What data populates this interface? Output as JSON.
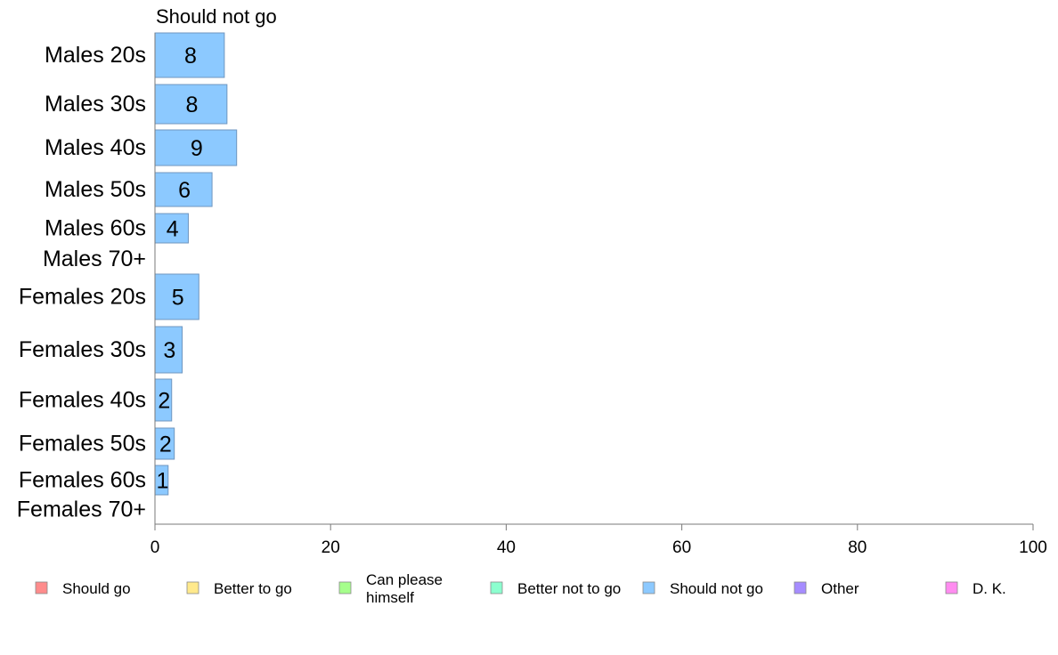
{
  "chart_data": {
    "type": "bar",
    "orientation": "horizontal",
    "title": "Should not go",
    "categories": [
      "Males 20s",
      "Males 30s",
      "Males 40s",
      "Males 50s",
      "Males 60s",
      "Males 70+",
      "Females 20s",
      "Females 30s",
      "Females 40s",
      "Females 50s",
      "Females 60s",
      "Females 70+"
    ],
    "series": [
      {
        "name": "Should not go",
        "values": [
          7.9,
          8.2,
          9.3,
          6.5,
          3.8,
          0,
          5.0,
          3.1,
          1.9,
          2.2,
          1.5,
          0
        ],
        "labels": [
          "8",
          "8",
          "9",
          "6",
          "4",
          "",
          "5",
          "3",
          "2",
          "2",
          "1",
          ""
        ]
      }
    ],
    "xlim": [
      0,
      100
    ],
    "xticks": [
      "0",
      "20",
      "40",
      "60",
      "80",
      "100"
    ],
    "grid": false,
    "legend": {
      "placement": "bottom",
      "entries": [
        {
          "label": "Should go",
          "color": "#ff8c8c"
        },
        {
          "label": "Better to go",
          "color": "#ffe98c"
        },
        {
          "label": "Can please himself",
          "color": "#a6ff8c"
        },
        {
          "label": "Better not to go",
          "color": "#8cffcf"
        },
        {
          "label": "Should not go",
          "color": "#8cc9ff"
        },
        {
          "label": "Other",
          "color": "#a68cff"
        },
        {
          "label": "D. K.",
          "color": "#ff8cf0"
        }
      ]
    },
    "bar_color": "#8cc9ff"
  }
}
